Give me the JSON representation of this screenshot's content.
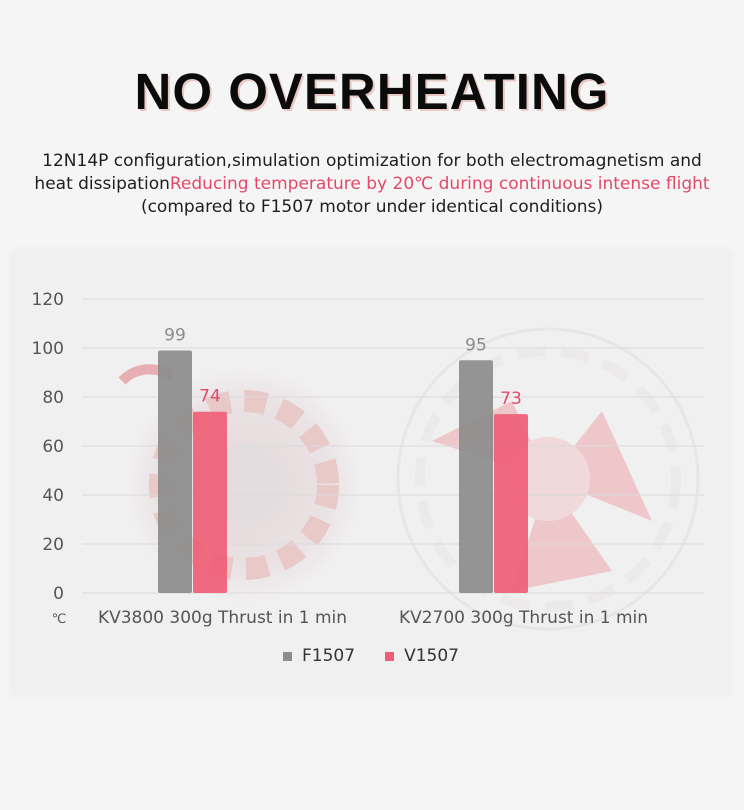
{
  "header": {
    "title": "NO OVERHEATING",
    "line1": "12N14P configuration,simulation optimization for both electromagnetism and",
    "line2_prefix": "heat dissipation",
    "line2_accent": "Reducing temperature by 20℃ during continuous intense flight",
    "line3": "(compared to F1507 motor under identical conditions)"
  },
  "colors": {
    "accent": "#e14a69",
    "f1507": "#8c8c8c",
    "v1507": "#ef5e76"
  },
  "chart_data": {
    "type": "bar",
    "categories": [
      "KV3800 300g Thrust in 1 min",
      "KV2700 300g Thrust in 1 min"
    ],
    "series": [
      {
        "name": "F1507",
        "values": [
          99,
          95
        ]
      },
      {
        "name": "V1507",
        "values": [
          74,
          73
        ]
      }
    ],
    "ylim": [
      0,
      120
    ],
    "yticks": [
      "0",
      "20",
      "40",
      "60",
      "80",
      "100",
      "120"
    ],
    "yunit": "℃",
    "grid": true,
    "legend_position": "bottom-center"
  }
}
